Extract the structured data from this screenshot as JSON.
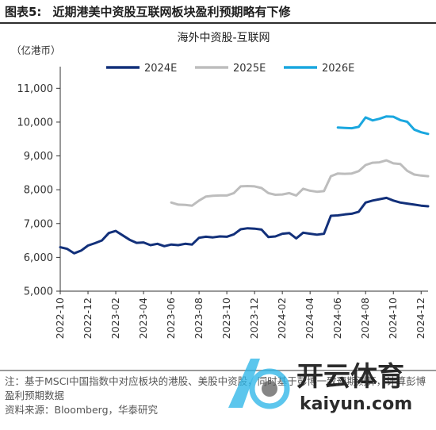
{
  "header": {
    "label": "图表5:",
    "caption": "近期港美中资股互联网板块盈利预期略有下修"
  },
  "footer": {
    "note": "注：基于MSCI中国指数中对应板块的港股、美股中资股，同时基于彭博一致预期测算，计算彭博盈利预期数据",
    "source": "资料来源：Bloomberg，华泰研究"
  },
  "watermark": {
    "text_cn": "开云体育",
    "text_en": "kaiyun.com"
  },
  "colors": {
    "s2024": "#12307a",
    "s2025": "#bdbdbd",
    "s2026": "#1aa7df",
    "axis": "#333333"
  },
  "chart_data": {
    "type": "line",
    "title": "海外中资股-互联网",
    "unit_label": "（亿港币）",
    "legend_position": "top",
    "ylim": [
      5000,
      11500
    ],
    "yticks": [
      5000,
      6000,
      7000,
      8000,
      9000,
      10000,
      11000
    ],
    "ytick_labels": [
      "5,000",
      "6,000",
      "7,000",
      "8,000",
      "9,000",
      "10,000",
      "11,000"
    ],
    "xlim": [
      "2022-10",
      "2024-12"
    ],
    "xticks": [
      "2022-10",
      "2022-12",
      "2023-02",
      "2023-04",
      "2023-06",
      "2023-08",
      "2023-10",
      "2023-12",
      "2024-02",
      "2024-04",
      "2024-06",
      "2024-08",
      "2024-10",
      "2024-12"
    ],
    "series": [
      {
        "name": "2024E",
        "color": "#12307a",
        "points": [
          [
            "2022-10",
            6300
          ],
          [
            "2022-10.5",
            6250
          ],
          [
            "2022-11",
            6120
          ],
          [
            "2022-11.5",
            6200
          ],
          [
            "2022-12",
            6350
          ],
          [
            "2022-12.5",
            6420
          ],
          [
            "2023-01",
            6500
          ],
          [
            "2023-01.5",
            6720
          ],
          [
            "2023-02",
            6780
          ],
          [
            "2023-02.5",
            6650
          ],
          [
            "2023-03",
            6520
          ],
          [
            "2023-03.5",
            6430
          ],
          [
            "2023-04",
            6440
          ],
          [
            "2023-04.5",
            6360
          ],
          [
            "2023-05",
            6400
          ],
          [
            "2023-05.5",
            6330
          ],
          [
            "2023-06",
            6380
          ],
          [
            "2023-06.5",
            6360
          ],
          [
            "2023-07",
            6400
          ],
          [
            "2023-07.5",
            6380
          ],
          [
            "2023-08",
            6580
          ],
          [
            "2023-08.5",
            6610
          ],
          [
            "2023-09",
            6590
          ],
          [
            "2023-09.5",
            6620
          ],
          [
            "2023-10",
            6610
          ],
          [
            "2023-10.5",
            6680
          ],
          [
            "2023-11",
            6830
          ],
          [
            "2023-11.5",
            6860
          ],
          [
            "2023-12",
            6850
          ],
          [
            "2023-12.5",
            6820
          ],
          [
            "2024-01",
            6600
          ],
          [
            "2024-01.5",
            6620
          ],
          [
            "2024-02",
            6700
          ],
          [
            "2024-02.5",
            6720
          ],
          [
            "2024-03",
            6560
          ],
          [
            "2024-03.5",
            6730
          ],
          [
            "2024-04",
            6700
          ],
          [
            "2024-04.5",
            6670
          ],
          [
            "2024-05",
            6700
          ],
          [
            "2024-05.5",
            7230
          ],
          [
            "2024-06",
            7240
          ],
          [
            "2024-06.5",
            7270
          ],
          [
            "2024-07",
            7290
          ],
          [
            "2024-07.5",
            7350
          ],
          [
            "2024-08",
            7620
          ],
          [
            "2024-08.5",
            7680
          ],
          [
            "2024-09",
            7720
          ],
          [
            "2024-09.5",
            7760
          ],
          [
            "2024-10",
            7680
          ],
          [
            "2024-10.5",
            7620
          ],
          [
            "2024-11",
            7590
          ],
          [
            "2024-11.5",
            7560
          ],
          [
            "2024-12",
            7530
          ],
          [
            "2024-12.5",
            7510
          ]
        ]
      },
      {
        "name": "2025E",
        "color": "#bdbdbd",
        "points": [
          [
            "2023-06",
            7620
          ],
          [
            "2023-06.5",
            7560
          ],
          [
            "2023-07",
            7550
          ],
          [
            "2023-07.5",
            7530
          ],
          [
            "2023-08",
            7680
          ],
          [
            "2023-08.5",
            7800
          ],
          [
            "2023-09",
            7820
          ],
          [
            "2023-09.5",
            7830
          ],
          [
            "2023-10",
            7830
          ],
          [
            "2023-10.5",
            7900
          ],
          [
            "2023-11",
            8100
          ],
          [
            "2023-11.5",
            8110
          ],
          [
            "2023-12",
            8100
          ],
          [
            "2023-12.5",
            8050
          ],
          [
            "2024-01",
            7900
          ],
          [
            "2024-01.5",
            7850
          ],
          [
            "2024-02",
            7860
          ],
          [
            "2024-02.5",
            7900
          ],
          [
            "2024-03",
            7830
          ],
          [
            "2024-03.5",
            8030
          ],
          [
            "2024-04",
            7970
          ],
          [
            "2024-04.5",
            7940
          ],
          [
            "2024-05",
            7960
          ],
          [
            "2024-05.5",
            8400
          ],
          [
            "2024-06",
            8480
          ],
          [
            "2024-06.5",
            8470
          ],
          [
            "2024-07",
            8480
          ],
          [
            "2024-07.5",
            8550
          ],
          [
            "2024-08",
            8730
          ],
          [
            "2024-08.5",
            8800
          ],
          [
            "2024-09",
            8810
          ],
          [
            "2024-09.5",
            8870
          ],
          [
            "2024-10",
            8780
          ],
          [
            "2024-10.5",
            8760
          ],
          [
            "2024-11",
            8560
          ],
          [
            "2024-11.5",
            8450
          ],
          [
            "2024-12",
            8420
          ],
          [
            "2024-12.5",
            8400
          ]
        ]
      },
      {
        "name": "2026E",
        "color": "#1aa7df",
        "points": [
          [
            "2024-06",
            9840
          ],
          [
            "2024-06.5",
            9830
          ],
          [
            "2024-07",
            9820
          ],
          [
            "2024-07.5",
            9860
          ],
          [
            "2024-08",
            10140
          ],
          [
            "2024-08.5",
            10050
          ],
          [
            "2024-09",
            10100
          ],
          [
            "2024-09.5",
            10170
          ],
          [
            "2024-10",
            10160
          ],
          [
            "2024-10.5",
            10060
          ],
          [
            "2024-11",
            10010
          ],
          [
            "2024-11.5",
            9780
          ],
          [
            "2024-12",
            9700
          ],
          [
            "2024-12.5",
            9650
          ]
        ]
      }
    ]
  }
}
